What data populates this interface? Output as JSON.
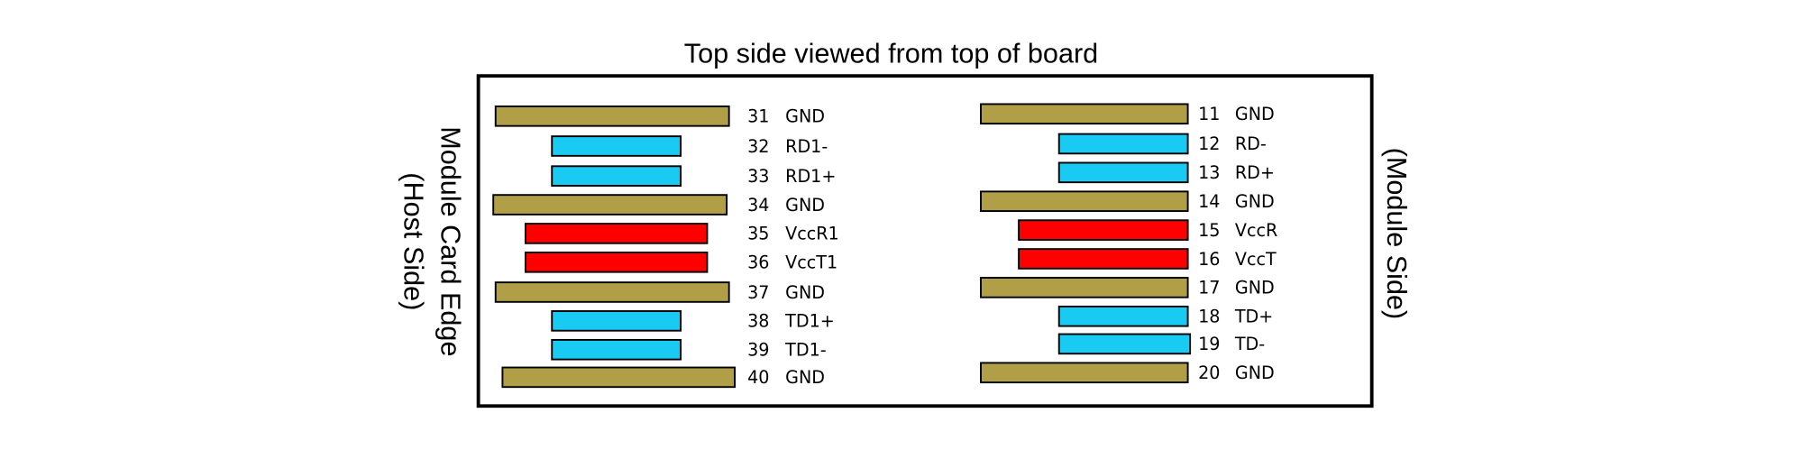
{
  "title": "Top side viewed from top of board",
  "left_side_label": [
    "Module Card Edge",
    "(Host Side)"
  ],
  "right_side_label": "(Module Side)",
  "left_pins": [
    {
      "number": "31",
      "name": "GND",
      "color": "#b19f48"
    },
    {
      "number": "32",
      "name": "RD1-",
      "color": "#19cbf2"
    },
    {
      "number": "33",
      "name": "RD1+",
      "color": "#19cbf2"
    },
    {
      "number": "34",
      "name": "GND",
      "color": "#b19f48"
    },
    {
      "number": "35",
      "name": "VccR1",
      "color": "#ff0000"
    },
    {
      "number": "36",
      "name": "VccT1",
      "color": "#ff0000"
    },
    {
      "number": "37",
      "name": "GND",
      "color": "#b19f48"
    },
    {
      "number": "38",
      "name": "TD1+",
      "color": "#19cbf2"
    },
    {
      "number": "39",
      "name": "TD1-",
      "color": "#19cbf2"
    },
    {
      "number": "40",
      "name": "GND",
      "color": "#b19f48"
    }
  ],
  "right_pins": [
    {
      "number": "11",
      "name": "GND",
      "color": "#b19f48"
    },
    {
      "number": "12",
      "name": "RD-",
      "color": "#19cbf2"
    },
    {
      "number": "13",
      "name": "RD+",
      "color": "#19cbf2"
    },
    {
      "number": "14",
      "name": "GND",
      "color": "#b19f48"
    },
    {
      "number": "15",
      "name": "VccR",
      "color": "#ff0000"
    },
    {
      "number": "16",
      "name": "VccT",
      "color": "#ff0000"
    },
    {
      "number": "17",
      "name": "GND",
      "color": "#b19f48"
    },
    {
      "number": "18",
      "name": "TD+",
      "color": "#19cbf2"
    },
    {
      "number": "19",
      "name": "TD-",
      "color": "#19cbf2"
    },
    {
      "number": "20",
      "name": "GND",
      "color": "#b19f48"
    }
  ]
}
